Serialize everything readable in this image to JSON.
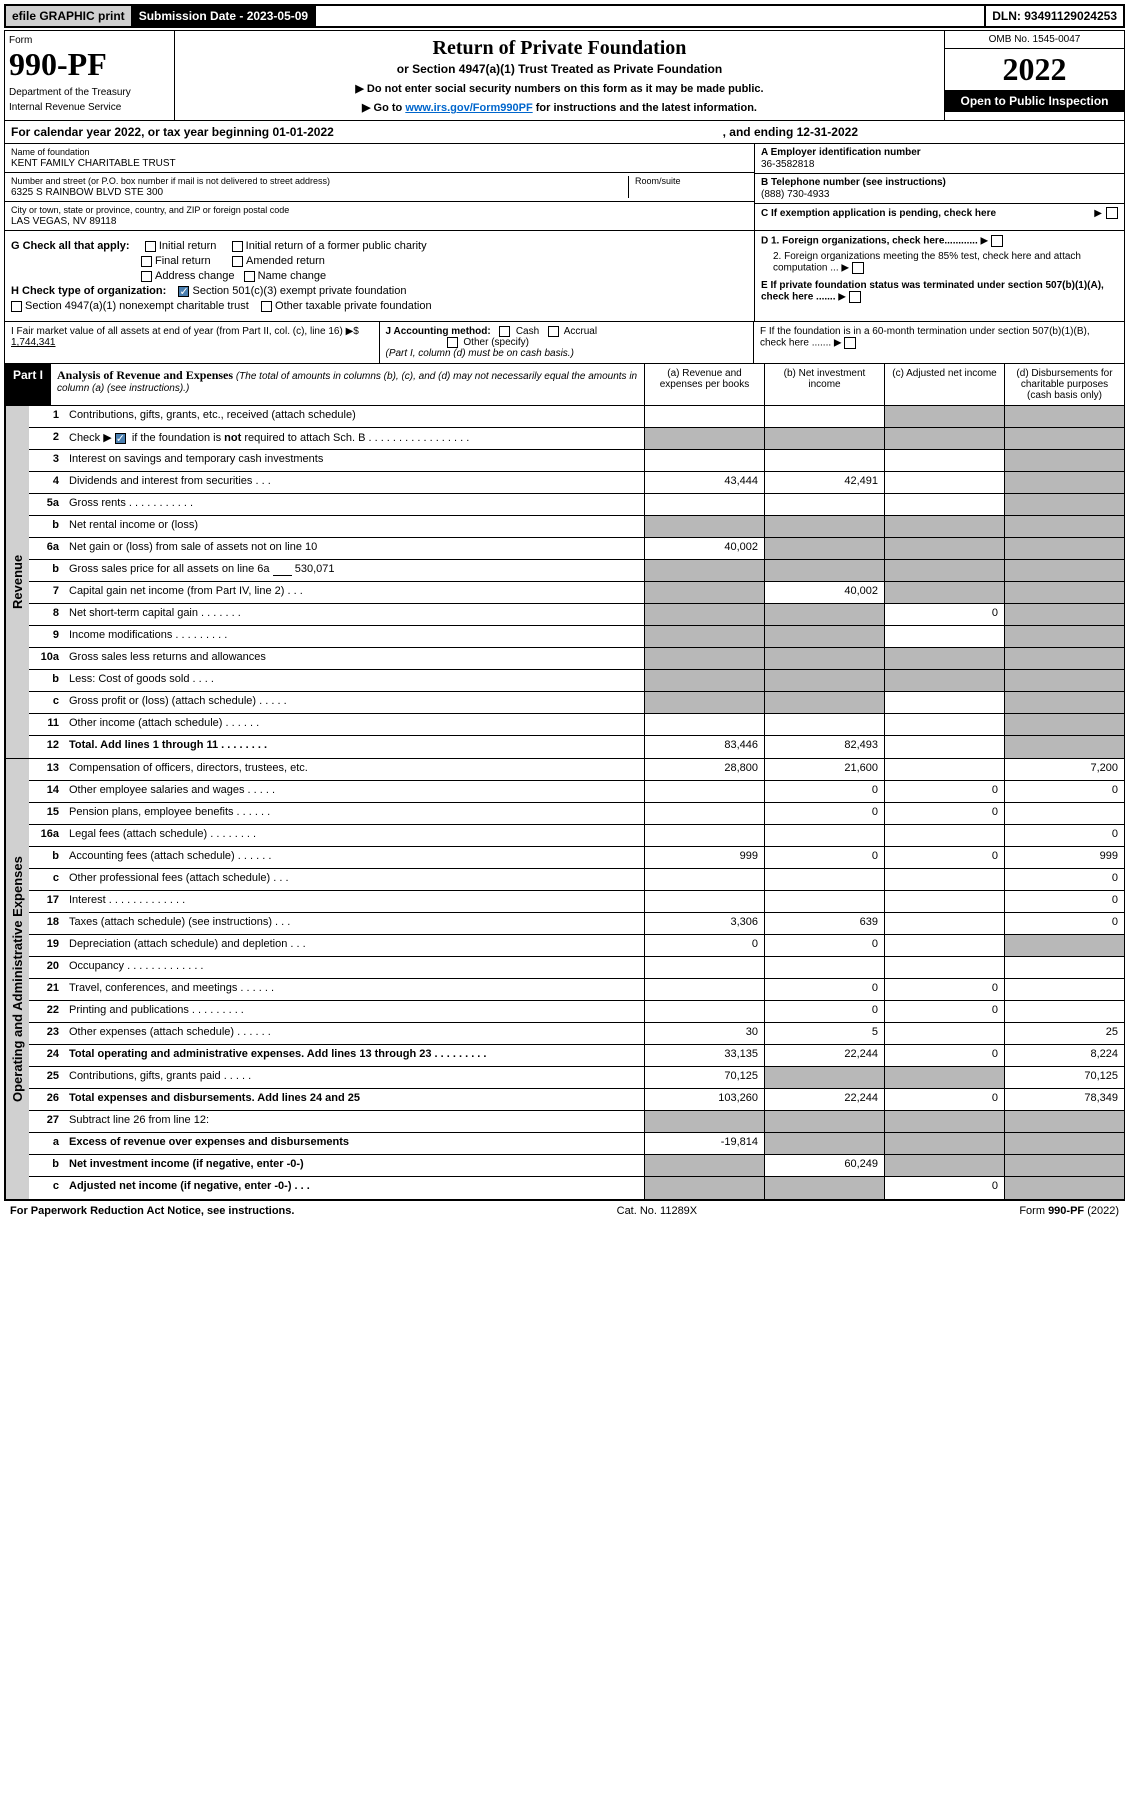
{
  "topbar": {
    "efile": "efile GRAPHIC print",
    "subdate_label": "Submission Date - 2023-05-09",
    "dln": "DLN: 93491129024253"
  },
  "header": {
    "form_label": "Form",
    "form_number": "990-PF",
    "dept1": "Department of the Treasury",
    "dept2": "Internal Revenue Service",
    "title": "Return of Private Foundation",
    "subtitle": "or Section 4947(a)(1) Trust Treated as Private Foundation",
    "note1": "▶ Do not enter social security numbers on this form as it may be made public.",
    "note2_pre": "▶ Go to ",
    "note2_link": "www.irs.gov/Form990PF",
    "note2_post": " for instructions and the latest information.",
    "omb": "OMB No. 1545-0047",
    "year": "2022",
    "open": "Open to Public Inspection"
  },
  "calyear": {
    "pre": "For calendar year 2022, or tax year beginning 01-01-2022",
    "mid": ", and ending 12-31-2022"
  },
  "info": {
    "name_label": "Name of foundation",
    "name": "KENT FAMILY CHARITABLE TRUST",
    "addr_label": "Number and street (or P.O. box number if mail is not delivered to street address)",
    "addr": "6325 S RAINBOW BLVD STE 300",
    "room_label": "Room/suite",
    "city_label": "City or town, state or province, country, and ZIP or foreign postal code",
    "city": "LAS VEGAS, NV  89118",
    "ein_label": "A Employer identification number",
    "ein": "36-3582818",
    "tel_label": "B Telephone number (see instructions)",
    "tel": "(888) 730-4933",
    "c_label": "C If exemption application is pending, check here"
  },
  "checks": {
    "g_label": "G Check all that apply:",
    "g1": "Initial return",
    "g2": "Initial return of a former public charity",
    "g3": "Final return",
    "g4": "Amended return",
    "g5": "Address change",
    "g6": "Name change",
    "h_label": "H Check type of organization:",
    "h1": "Section 501(c)(3) exempt private foundation",
    "h2": "Section 4947(a)(1) nonexempt charitable trust",
    "h3": "Other taxable private foundation",
    "d1": "D 1. Foreign organizations, check here............",
    "d2": "2. Foreign organizations meeting the 85% test, check here and attach computation ...",
    "e": "E  If private foundation status was terminated under section 507(b)(1)(A), check here .......",
    "f": "F  If the foundation is in a 60-month termination under section 507(b)(1)(B), check here ......."
  },
  "fmv": {
    "i_label": "I Fair market value of all assets at end of year (from Part II, col. (c), line 16) ▶$",
    "i_value": "1,744,341",
    "j_label": "J Accounting method:",
    "j_cash": "Cash",
    "j_accrual": "Accrual",
    "j_other": "Other (specify)",
    "j_note": "(Part I, column (d) must be on cash basis.)"
  },
  "part1": {
    "label": "Part I",
    "title": "Analysis of Revenue and Expenses",
    "title_note": "(The total of amounts in columns (b), (c), and (d) may not necessarily equal the amounts in column (a) (see instructions).)",
    "col_a": "(a)   Revenue and expenses per books",
    "col_b": "(b)   Net investment income",
    "col_c": "(c)   Adjusted net income",
    "col_d": "(d)   Disbursements for charitable purposes (cash basis only)"
  },
  "sidelabels": {
    "revenue": "Revenue",
    "expenses": "Operating and Administrative Expenses"
  },
  "rows": [
    {
      "num": "1",
      "label": "Contributions, gifts, grants, etc., received (attach schedule)",
      "a": "",
      "b": "",
      "c": "g",
      "d": "g"
    },
    {
      "num": "2",
      "label": "Check ▶ ☑ if the foundation is not required to attach Sch. B    .  .  .  .  .  .  .  .  .  .  .  .  .  .  .  .  .",
      "a": "g",
      "b": "g",
      "c": "g",
      "d": "g",
      "checked": true
    },
    {
      "num": "3",
      "label": "Interest on savings and temporary cash investments",
      "a": "",
      "b": "",
      "c": "",
      "d": "g"
    },
    {
      "num": "4",
      "label": "Dividends and interest from securities    .  .  .",
      "a": "43,444",
      "b": "42,491",
      "c": "",
      "d": "g"
    },
    {
      "num": "5a",
      "label": "Gross rents    .  .  .  .  .  .  .  .  .  .  .",
      "a": "",
      "b": "",
      "c": "",
      "d": "g"
    },
    {
      "num": "b",
      "label": "Net rental income or (loss)  ",
      "a": "g",
      "b": "g",
      "c": "g",
      "d": "g"
    },
    {
      "num": "6a",
      "label": "Net gain or (loss) from sale of assets not on line 10",
      "a": "40,002",
      "b": "g",
      "c": "g",
      "d": "g"
    },
    {
      "num": "b",
      "label": "Gross sales price for all assets on line 6a",
      "inline": "530,071",
      "a": "g",
      "b": "g",
      "c": "g",
      "d": "g"
    },
    {
      "num": "7",
      "label": "Capital gain net income (from Part IV, line 2)   .  .  .",
      "a": "g",
      "b": "40,002",
      "c": "g",
      "d": "g"
    },
    {
      "num": "8",
      "label": "Net short-term capital gain   .  .  .  .  .  .  .",
      "a": "g",
      "b": "g",
      "c": "0",
      "d": "g"
    },
    {
      "num": "9",
      "label": "Income modifications  .  .  .  .  .  .  .  .  .",
      "a": "g",
      "b": "g",
      "c": "",
      "d": "g"
    },
    {
      "num": "10a",
      "label": "Gross sales less returns and allowances",
      "a": "g",
      "b": "g",
      "c": "g",
      "d": "g"
    },
    {
      "num": "b",
      "label": "Less: Cost of goods sold    .  .  .  .",
      "a": "g",
      "b": "g",
      "c": "g",
      "d": "g"
    },
    {
      "num": "c",
      "label": "Gross profit or (loss) (attach schedule)    .  .  .  .  .",
      "a": "g",
      "b": "g",
      "c": "",
      "d": "g"
    },
    {
      "num": "11",
      "label": "Other income (attach schedule)    .  .  .  .  .  .",
      "a": "",
      "b": "",
      "c": "",
      "d": "g"
    },
    {
      "num": "12",
      "label": "Total. Add lines 1 through 11   .  .  .  .  .  .  .  .",
      "bold": true,
      "a": "83,446",
      "b": "82,493",
      "c": "",
      "d": "g"
    }
  ],
  "exp_rows": [
    {
      "num": "13",
      "label": "Compensation of officers, directors, trustees, etc.",
      "a": "28,800",
      "b": "21,600",
      "c": "",
      "d": "7,200"
    },
    {
      "num": "14",
      "label": "Other employee salaries and wages    .  .  .  .  .",
      "a": "",
      "b": "0",
      "c": "0",
      "d": "0"
    },
    {
      "num": "15",
      "label": "Pension plans, employee benefits   .  .  .  .  .  .",
      "a": "",
      "b": "0",
      "c": "0",
      "d": ""
    },
    {
      "num": "16a",
      "label": "Legal fees (attach schedule)  .  .  .  .  .  .  .  .",
      "a": "",
      "b": "",
      "c": "",
      "d": "0"
    },
    {
      "num": "b",
      "label": "Accounting fees (attach schedule)  .  .  .  .  .  .",
      "a": "999",
      "b": "0",
      "c": "0",
      "d": "999"
    },
    {
      "num": "c",
      "label": "Other professional fees (attach schedule)    .  .  .",
      "a": "",
      "b": "",
      "c": "",
      "d": "0"
    },
    {
      "num": "17",
      "label": "Interest  .  .  .  .  .  .  .  .  .  .  .  .  .",
      "a": "",
      "b": "",
      "c": "",
      "d": "0"
    },
    {
      "num": "18",
      "label": "Taxes (attach schedule) (see instructions)    .  .  .",
      "a": "3,306",
      "b": "639",
      "c": "",
      "d": "0"
    },
    {
      "num": "19",
      "label": "Depreciation (attach schedule) and depletion    .  .  .",
      "a": "0",
      "b": "0",
      "c": "",
      "d": "g"
    },
    {
      "num": "20",
      "label": "Occupancy  .  .  .  .  .  .  .  .  .  .  .  .  .",
      "a": "",
      "b": "",
      "c": "",
      "d": ""
    },
    {
      "num": "21",
      "label": "Travel, conferences, and meetings  .  .  .  .  .  .",
      "a": "",
      "b": "0",
      "c": "0",
      "d": ""
    },
    {
      "num": "22",
      "label": "Printing and publications  .  .  .  .  .  .  .  .  .",
      "a": "",
      "b": "0",
      "c": "0",
      "d": ""
    },
    {
      "num": "23",
      "label": "Other expenses (attach schedule)  .  .  .  .  .  .",
      "a": "30",
      "b": "5",
      "c": "",
      "d": "25"
    },
    {
      "num": "24",
      "label": "Total operating and administrative expenses. Add lines 13 through 23   .  .  .  .  .  .  .  .  .",
      "bold": true,
      "a": "33,135",
      "b": "22,244",
      "c": "0",
      "d": "8,224"
    },
    {
      "num": "25",
      "label": "Contributions, gifts, grants paid    .  .  .  .  .",
      "a": "70,125",
      "b": "g",
      "c": "g",
      "d": "70,125"
    },
    {
      "num": "26",
      "label": "Total expenses and disbursements. Add lines 24 and 25",
      "bold": true,
      "a": "103,260",
      "b": "22,244",
      "c": "0",
      "d": "78,349"
    },
    {
      "num": "27",
      "label": "Subtract line 26 from line 12:",
      "a": "g",
      "b": "g",
      "c": "g",
      "d": "g"
    },
    {
      "num": "a",
      "label": "Excess of revenue over expenses and disbursements",
      "bold": true,
      "a": "-19,814",
      "b": "g",
      "c": "g",
      "d": "g"
    },
    {
      "num": "b",
      "label": "Net investment income (if negative, enter -0-)",
      "bold": true,
      "a": "g",
      "b": "60,249",
      "c": "g",
      "d": "g"
    },
    {
      "num": "c",
      "label": "Adjusted net income (if negative, enter -0-)   .  .  .",
      "bold": true,
      "a": "g",
      "b": "g",
      "c": "0",
      "d": "g"
    }
  ],
  "footer": {
    "left": "For Paperwork Reduction Act Notice, see instructions.",
    "mid": "Cat. No. 11289X",
    "right": "Form 990-PF (2022)"
  }
}
